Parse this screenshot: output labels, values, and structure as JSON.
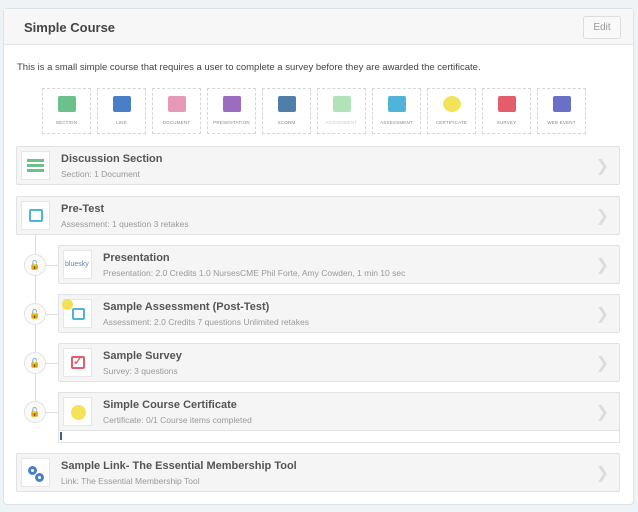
{
  "header": {
    "title": "Simple Course",
    "edit_label": "Edit"
  },
  "description": "This is a small simple course that requires a user to complete a survey before they are awarded the certificate.",
  "toolbar": [
    {
      "label": "SECTION",
      "icon": "section-icon",
      "color": "#6cc08b"
    },
    {
      "label": "LINK",
      "icon": "link-icon",
      "color": "#4a7fc8"
    },
    {
      "label": "DOCUMENT",
      "icon": "document-icon",
      "color": "#e79ab8"
    },
    {
      "label": "PRESENTATION",
      "icon": "presentation-icon",
      "color": "#9b6bc0"
    },
    {
      "label": "SCORM",
      "icon": "scorm-icon",
      "color": "#4f7fa9"
    },
    {
      "label": "ASSIGNMENT",
      "icon": "graduation-cap-icon",
      "color": "#7fcf8a"
    },
    {
      "label": "ASSESSMENT",
      "icon": "assessment-icon",
      "color": "#4fb4d8"
    },
    {
      "label": "CERTIFICATE",
      "icon": "certificate-icon",
      "color": "#f2e35a"
    },
    {
      "label": "SURVEY",
      "icon": "survey-icon",
      "color": "#e35d6a"
    },
    {
      "label": "WEB EVENT",
      "icon": "video-icon",
      "color": "#6a6fc8"
    }
  ],
  "items": [
    {
      "name": "Discussion Section",
      "meta": "Section:  1 Document"
    },
    {
      "name": "Pre-Test",
      "meta": "Assessment: 1 question  3 retakes"
    },
    {
      "name": "Presentation",
      "meta": "Presentation:  2.0 Credits  1.0 NursesCME  Phil Forte,  Amy Cowden,  1 min 10 sec",
      "thumb": "bluesky"
    },
    {
      "name": "Sample Assessment (Post-Test)",
      "meta": "Assessment: 2.0 Credits  7 questions  Unlimited retakes"
    },
    {
      "name": "Sample Survey",
      "meta": "Survey: 3 questions"
    },
    {
      "name": "Simple Course Certificate",
      "meta": "Certificate:  0/1 Course items completed"
    },
    {
      "name": "Sample Link- The Essential Membership Tool",
      "meta": "Link:  The Essential Membership Tool"
    }
  ]
}
